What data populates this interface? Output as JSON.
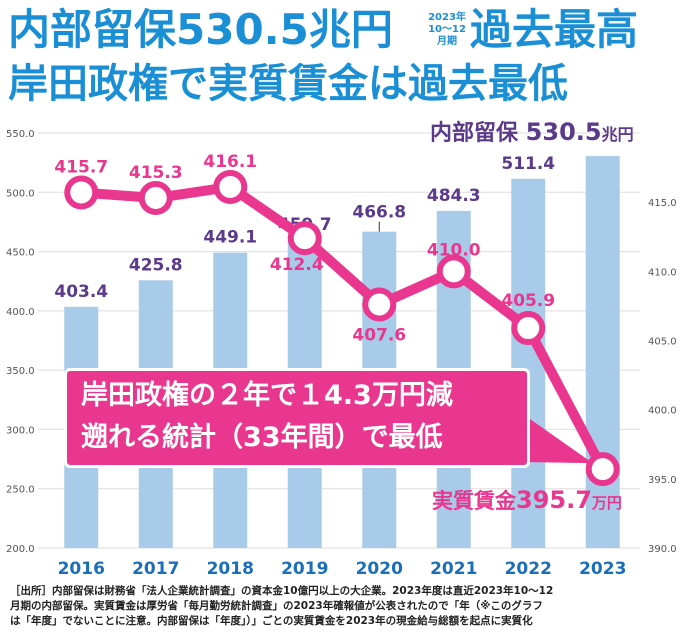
{
  "title": {
    "line1_left": "内部留保530.5兆円",
    "period_year": "2023年",
    "period_months": "10～12",
    "period_term": "月期",
    "line1_right": "過去最高",
    "line2": "岸田政権で実質賃金は過去最低"
  },
  "chart_data": {
    "type": "bar+line",
    "categories": [
      "2016",
      "2017",
      "2018",
      "2019",
      "2020",
      "2021",
      "2022",
      "2023"
    ],
    "bars": {
      "name": "内部留保",
      "unit": "兆円",
      "values": [
        403.4,
        425.8,
        449.1,
        459.7,
        466.8,
        484.3,
        511.4,
        530.5
      ],
      "labels": [
        "403.4",
        "425.8",
        "449.1",
        "459.7",
        "466.8",
        "484.3",
        "511.4",
        "530.5"
      ],
      "color": "#a9cbea",
      "axis": "left",
      "ylim": [
        200,
        550
      ],
      "ticks": [
        "200.0",
        "250.0",
        "300.0",
        "350.0",
        "400.0",
        "450.0",
        "500.0",
        "550.0"
      ]
    },
    "line": {
      "name": "実質賃金",
      "unit": "万円",
      "values": [
        415.7,
        415.3,
        416.1,
        412.4,
        407.6,
        410.0,
        405.9,
        395.7
      ],
      "labels": [
        "415.7",
        "415.3",
        "416.1",
        "412.4",
        "407.6",
        "410.0",
        "405.9",
        "395.7"
      ],
      "color": "#e9378f",
      "axis": "right",
      "ylim": [
        390,
        420
      ],
      "ticks": [
        "390.0",
        "395.0",
        "400.0",
        "405.0",
        "410.0",
        "415.0"
      ]
    },
    "annotation_bar": {
      "name": "内部留保",
      "value": "530.5",
      "unit": "兆円"
    },
    "annotation_line": {
      "name": "実質賃金",
      "value": "395.7",
      "unit": "万円"
    }
  },
  "callout": {
    "line1": "岸田政権の２年で１4.3万円減",
    "line2": "遡れる統計（33年間）で最低"
  },
  "source": {
    "line1": "［出所］内部留保は財務省「法人企業統計調査」の資本金10億円以上の大企業。2023年度は直近2023年10～12",
    "line2": "月期の内部留保。実質賃金は厚労省「毎月勤労統計調査」の2023年確報値が公表されたので「年（※このグラフ",
    "line3": "は「年度」でないことに注意。内部留保は「年度」）」ごとの実質賃金を2023年の現金給与総額を起点に実質化"
  },
  "colors": {
    "title": "#1a8fd6",
    "bar": "#a9cbea",
    "bar_label": "#5b3a8c",
    "line": "#e9378f",
    "axis_text": "#555555",
    "year_label": "#1a6fb8"
  }
}
